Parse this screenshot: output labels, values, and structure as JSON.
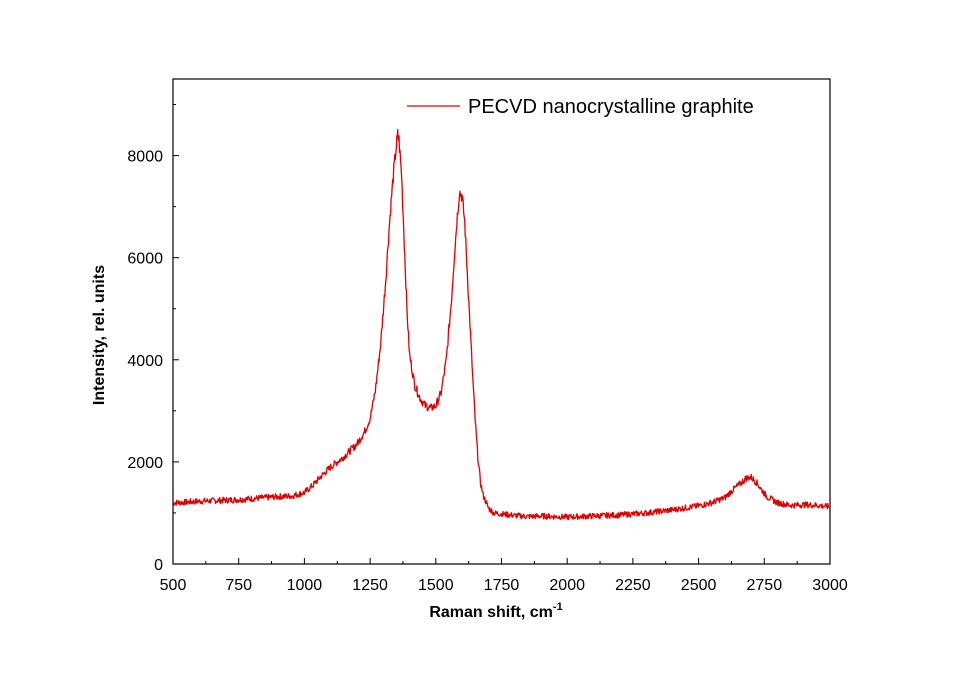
{
  "chart_data": {
    "type": "line",
    "title": "",
    "xlabel": "Raman shift, cm",
    "xlabel_superscript": "-1",
    "ylabel": "Intensity, rel. units",
    "xlim": [
      500,
      3000
    ],
    "ylim": [
      0,
      9500
    ],
    "x_ticks": [
      500,
      750,
      1000,
      1250,
      1500,
      1750,
      2000,
      2250,
      2500,
      2750,
      3000
    ],
    "y_ticks": [
      0,
      2000,
      4000,
      6000,
      8000
    ],
    "grid": false,
    "legend_position": "top-right",
    "series": [
      {
        "name": "PECVD nanocrystalline graphite",
        "color": "#e00000",
        "x": [
          500,
          550,
          600,
          650,
          700,
          750,
          800,
          850,
          900,
          950,
          1000,
          1030,
          1060,
          1100,
          1150,
          1200,
          1230,
          1250,
          1270,
          1290,
          1310,
          1320,
          1330,
          1340,
          1350,
          1355,
          1360,
          1370,
          1380,
          1390,
          1400,
          1420,
          1440,
          1460,
          1480,
          1500,
          1520,
          1540,
          1560,
          1570,
          1580,
          1590,
          1600,
          1610,
          1620,
          1630,
          1640,
          1650,
          1660,
          1670,
          1680,
          1700,
          1720,
          1750,
          1800,
          1850,
          1900,
          1950,
          2000,
          2100,
          2200,
          2300,
          2400,
          2500,
          2550,
          2600,
          2630,
          2660,
          2680,
          2700,
          2720,
          2740,
          2760,
          2800,
          2850,
          2900,
          2950,
          3000
        ],
        "y": [
          1200,
          1210,
          1230,
          1240,
          1250,
          1260,
          1280,
          1300,
          1320,
          1330,
          1400,
          1530,
          1700,
          1900,
          2100,
          2350,
          2600,
          2850,
          3400,
          4300,
          5600,
          6400,
          7100,
          7700,
          8200,
          8400,
          8300,
          7600,
          6300,
          5000,
          4100,
          3500,
          3250,
          3100,
          3050,
          3100,
          3350,
          4000,
          5200,
          6000,
          6700,
          7300,
          7200,
          6700,
          5700,
          4700,
          3700,
          2800,
          2100,
          1600,
          1350,
          1100,
          1000,
          980,
          950,
          930,
          940,
          930,
          920,
          940,
          960,
          1000,
          1060,
          1140,
          1200,
          1300,
          1450,
          1580,
          1680,
          1700,
          1600,
          1450,
          1320,
          1200,
          1150,
          1160,
          1150,
          1120
        ]
      }
    ]
  }
}
